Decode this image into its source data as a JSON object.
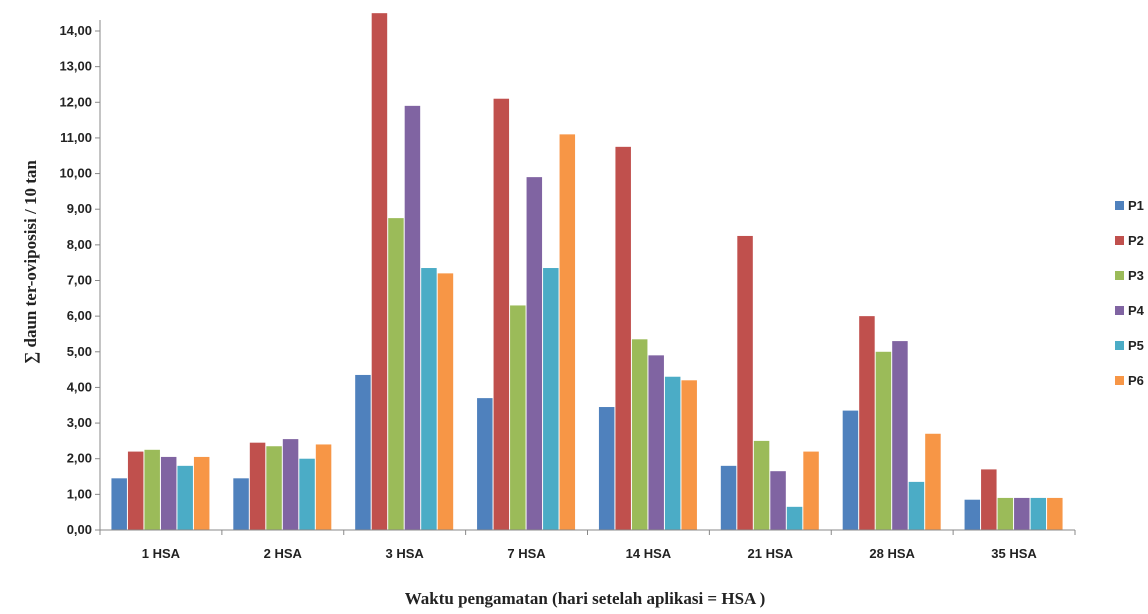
{
  "chart_data": {
    "type": "bar",
    "title": "",
    "xlabel": "Waktu pengamatan (hari setelah aplikasi = HSA )",
    "ylabel": "∑ daun ter-oviposisi / 10 tan",
    "ylim": [
      0,
      14
    ],
    "yticks": [
      "0,00",
      "1,00",
      "2,00",
      "3,00",
      "4,00",
      "5,00",
      "6,00",
      "7,00",
      "8,00",
      "9,00",
      "10,00",
      "11,00",
      "12,00",
      "13,00",
      "14,00"
    ],
    "categories": [
      "1 HSA",
      "2 HSA",
      "3 HSA",
      "7 HSA",
      "14 HSA",
      "21 HSA",
      "28 HSA",
      "35 HSA"
    ],
    "legend_position": "right",
    "grid": false,
    "series": [
      {
        "name": "P1",
        "color": "#4F81BD",
        "values": [
          1.45,
          1.45,
          4.35,
          3.7,
          3.45,
          1.8,
          3.35,
          0.85
        ]
      },
      {
        "name": "P2",
        "color": "#C0504D",
        "values": [
          2.2,
          2.45,
          14.5,
          12.1,
          10.75,
          8.25,
          6.0,
          1.7
        ]
      },
      {
        "name": "P3",
        "color": "#9BBB59",
        "values": [
          2.25,
          2.35,
          8.75,
          6.3,
          5.35,
          2.5,
          5.0,
          0.9
        ]
      },
      {
        "name": "P4",
        "color": "#8064A2",
        "values": [
          2.05,
          2.55,
          11.9,
          9.9,
          4.9,
          1.65,
          5.3,
          0.9
        ]
      },
      {
        "name": "P5",
        "color": "#4BACC6",
        "values": [
          1.8,
          2.0,
          7.35,
          7.35,
          4.3,
          0.65,
          1.35,
          0.9
        ]
      },
      {
        "name": "P6",
        "color": "#F79646",
        "values": [
          2.05,
          2.4,
          7.2,
          11.1,
          4.2,
          2.2,
          2.7,
          0.9
        ]
      }
    ]
  }
}
